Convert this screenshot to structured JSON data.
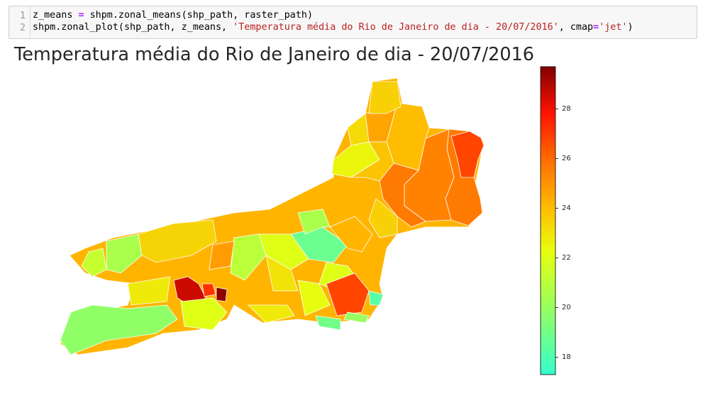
{
  "code_cell": {
    "line_numbers": [
      "1",
      "2"
    ],
    "line1": {
      "var": "z_means ",
      "op": "=",
      "call": " shpm.zonal_means(shp_path, raster_path)"
    },
    "line2": {
      "pre": "shpm.zonal_plot(shp_path, z_means, ",
      "title_arg": "'Temperatura média do Rio de Janeiro de dia - 20/07/2016'",
      "mid": ", cmap",
      "op": "=",
      "cmap_arg": "'jet'",
      "post": ")"
    }
  },
  "plot": {
    "title": "Temperatura média do Rio de Janeiro de dia - 20/07/2016"
  },
  "chart_data": {
    "type": "heatmap",
    "colormap": "jet",
    "title": "Temperatura média do Rio de Janeiro de dia - 20/07/2016",
    "colorbar": {
      "range": [
        17.3,
        29.7
      ],
      "ticks": [
        "18",
        "20",
        "22",
        "24",
        "26",
        "28"
      ]
    },
    "regions": [
      {
        "name": "",
        "value": 25.6
      },
      {
        "name": "",
        "value": 25.4
      },
      {
        "name": "",
        "value": 26.8
      },
      {
        "name": "",
        "value": 25.6
      },
      {
        "name": "",
        "value": 24.0
      },
      {
        "name": "",
        "value": 24.6
      },
      {
        "name": "",
        "value": 23.2
      },
      {
        "name": "",
        "value": 22.5
      },
      {
        "name": "",
        "value": 23.8
      },
      {
        "name": "",
        "value": 23.5
      },
      {
        "name": "",
        "value": 21.0
      },
      {
        "name": "",
        "value": 18.8
      },
      {
        "name": "",
        "value": 22.0
      },
      {
        "name": "",
        "value": 21.3
      },
      {
        "name": "",
        "value": 20.5
      },
      {
        "name": "",
        "value": 23.4
      },
      {
        "name": "",
        "value": 22.0
      },
      {
        "name": "",
        "value": 23.0
      },
      {
        "name": "",
        "value": 22.3
      },
      {
        "name": "",
        "value": 22.8
      },
      {
        "name": "",
        "value": 19.8
      },
      {
        "name": "",
        "value": 20.5
      },
      {
        "name": "",
        "value": 24.2
      },
      {
        "name": "",
        "value": 28.6
      },
      {
        "name": "",
        "value": 27.2
      },
      {
        "name": "",
        "value": 29.5
      },
      {
        "name": "",
        "value": 24.8
      },
      {
        "name": "",
        "value": 22.8
      },
      {
        "name": "",
        "value": 23.5
      },
      {
        "name": "",
        "value": 26.8
      },
      {
        "name": "",
        "value": 18.3
      },
      {
        "name": "",
        "value": 20.0
      },
      {
        "name": "",
        "value": 19.0
      },
      {
        "name": "",
        "value": 22.0
      }
    ]
  }
}
